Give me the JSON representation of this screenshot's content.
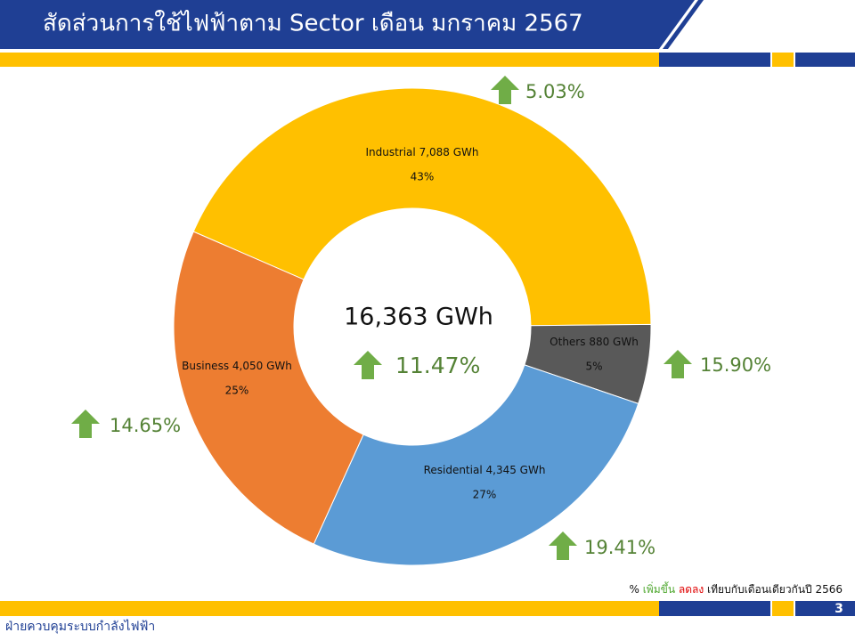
{
  "chart_data": {
    "type": "donut",
    "title": "สัดส่วนการใช้ไฟฟ้าตาม Sector เดือน มกราคม 2567",
    "categories": [
      "Industrial",
      "Others",
      "Residential",
      "Business"
    ],
    "values": [
      7088,
      880,
      4345,
      4050
    ],
    "value_labels": [
      "7,088 GWh",
      "880 GWh",
      "4,345 GWh",
      "4,050 GWh"
    ],
    "share_labels": [
      "43%",
      "5%",
      "27%",
      "25%"
    ],
    "colors": [
      "#FFC000",
      "#595959",
      "#5B9BD5",
      "#ED7D31"
    ],
    "growth": [
      {
        "value": 5.03,
        "label": "5.03%"
      },
      {
        "value": 15.9,
        "label": "15.90%"
      },
      {
        "value": 19.41,
        "label": "19.41%"
      },
      {
        "value": 14.65,
        "label": "14.65%"
      }
    ],
    "total_label": "16,363 GWh",
    "total_growth": {
      "value": 11.47,
      "label": "11.47%"
    },
    "note": {
      "unit": "%",
      "up": "เพิ่มขึ้น",
      "down": "ลดลง",
      "rest": "เทียบกับเดือนเดียวกันปี 2566"
    },
    "footer": "ฝ่ายควบคุมระบบกำลังไฟฟ้า",
    "page_number": "3"
  }
}
